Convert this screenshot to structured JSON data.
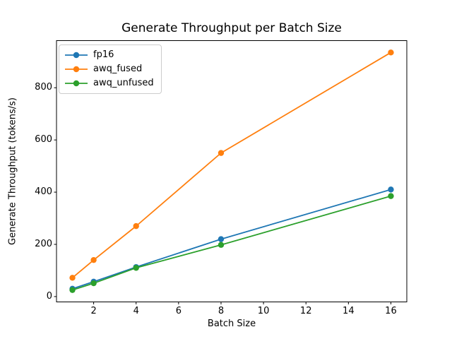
{
  "figure": {
    "title": "Generate Throughput per Batch Size",
    "xlabel": "Batch Size",
    "ylabel": "Generate Throughput (tokens/s)"
  },
  "chart_data": {
    "type": "line",
    "title": "Generate Throughput per Batch Size",
    "xlabel": "Batch Size",
    "ylabel": "Generate Throughput (tokens/s)",
    "x": [
      1,
      2,
      4,
      8,
      16
    ],
    "series": [
      {
        "name": "fp16",
        "color": "#1f77b4",
        "values": [
          30,
          57,
          113,
          220,
          410
        ]
      },
      {
        "name": "awq_fused",
        "color": "#ff7f0e",
        "values": [
          72,
          140,
          270,
          550,
          935
        ]
      },
      {
        "name": "awq_unfused",
        "color": "#2ca02c",
        "values": [
          25,
          51,
          110,
          198,
          385
        ]
      }
    ],
    "marker": "o",
    "grid": false,
    "legend_position": "upper left",
    "xticks": [
      2,
      4,
      6,
      8,
      10,
      12,
      14,
      16
    ],
    "yticks": [
      0,
      200,
      400,
      600,
      800
    ],
    "xlim": [
      0.25,
      16.75
    ],
    "ylim": [
      -20.5,
      980.5
    ],
    "spine_color": "#000000",
    "background_color": "#ffffff"
  }
}
